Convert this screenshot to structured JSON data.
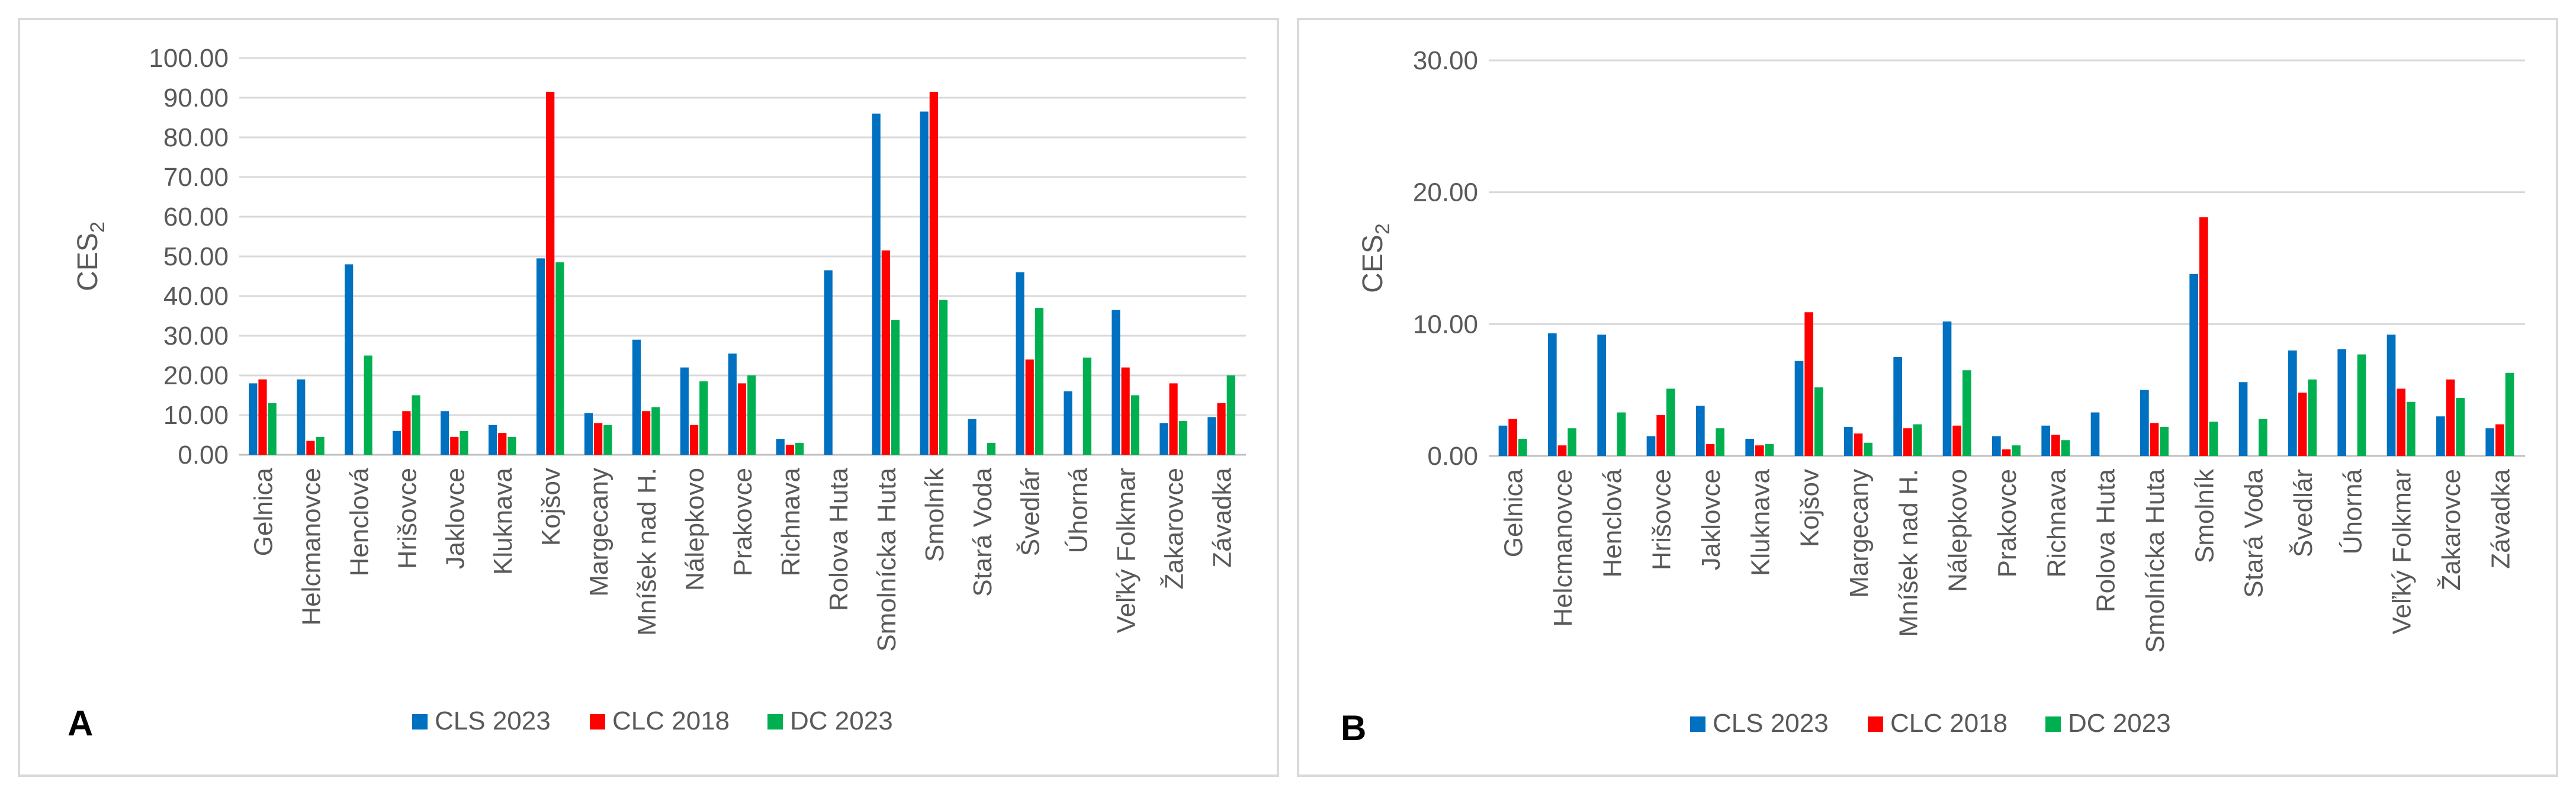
{
  "chart_data": [
    {
      "type": "bar",
      "panel_label": "A",
      "ylabel": "CES",
      "ylabel_sub": "2",
      "ylim": [
        0,
        100
      ],
      "ytick_step": 10,
      "ytick_labels": [
        "0.00",
        "10.00",
        "20.00",
        "30.00",
        "40.00",
        "50.00",
        "60.00",
        "70.00",
        "80.00",
        "90.00",
        "100.00"
      ],
      "categories": [
        "Gelnica",
        "Helcmanovce",
        "Henclová",
        "Hrišovce",
        "Jaklovce",
        "Kluknava",
        "Kojšov",
        "Margecany",
        "Mníšek nad H.",
        "Nálepkovo",
        "Prakovce",
        "Richnava",
        "Rolova Huta",
        "Smolnícka Huta",
        "Smolník",
        "Stará Voda",
        "Švedlár",
        "Úhorná",
        "Veľký Folkmar",
        "Žakarovce",
        "Závadka"
      ],
      "series": [
        {
          "name": "CLS 2023",
          "color": "#0070C0",
          "values": [
            18,
            19,
            48,
            6,
            11,
            7.5,
            49.5,
            10.5,
            29,
            22,
            25.5,
            4,
            46.5,
            86,
            86.5,
            9,
            46,
            16,
            36.5,
            8,
            9.5
          ]
        },
        {
          "name": "CLC 2018",
          "color": "#FF0000",
          "values": [
            19,
            3.5,
            0,
            11,
            4.5,
            5.5,
            91.5,
            8,
            11,
            7.5,
            18,
            2.5,
            0,
            51.5,
            91.5,
            0,
            24,
            0,
            22,
            18,
            13
          ]
        },
        {
          "name": "DC 2023",
          "color": "#00B050",
          "values": [
            13,
            4.5,
            25,
            15,
            6,
            4.5,
            48.5,
            7.5,
            12,
            18.5,
            20,
            3,
            0,
            34,
            39,
            3,
            37,
            24.5,
            15,
            8.5,
            20
          ]
        }
      ]
    },
    {
      "type": "bar",
      "panel_label": "B",
      "ylabel": "CES",
      "ylabel_sub": "2",
      "ylim": [
        0,
        30
      ],
      "ytick_step": 10,
      "ytick_labels": [
        "0.00",
        "10.00",
        "20.00",
        "30.00"
      ],
      "categories": [
        "Gelnica",
        "Helcmanovce",
        "Henclová",
        "Hrišovce",
        "Jaklovce",
        "Kluknava",
        "Kojšov",
        "Margecany",
        "Mníšek nad H.",
        "Nálepkovo",
        "Prakovce",
        "Richnava",
        "Rolova Huta",
        "Smolnícka Huta",
        "Smolník",
        "Stará Voda",
        "Švedlár",
        "Úhorná",
        "Veľký Folkmar",
        "Žakarovce",
        "Závadka"
      ],
      "series": [
        {
          "name": "CLS 2023",
          "color": "#0070C0",
          "values": [
            2.3,
            9.3,
            9.2,
            1.5,
            3.8,
            1.3,
            7.2,
            2.2,
            7.5,
            10.2,
            1.5,
            2.3,
            3.3,
            5.0,
            13.8,
            5.6,
            8.0,
            8.1,
            9.2,
            3.0,
            2.1
          ]
        },
        {
          "name": "CLC 2018",
          "color": "#FF0000",
          "values": [
            2.8,
            0.8,
            0,
            3.1,
            0.9,
            0.8,
            10.9,
            1.7,
            2.1,
            2.3,
            0.5,
            1.6,
            0,
            2.5,
            18.1,
            0,
            4.8,
            0,
            5.1,
            5.8,
            2.4
          ]
        },
        {
          "name": "DC 2023",
          "color": "#00B050",
          "values": [
            1.3,
            2.1,
            3.3,
            5.1,
            2.1,
            0.9,
            5.2,
            1.0,
            2.4,
            6.5,
            0.8,
            1.2,
            0,
            2.2,
            2.6,
            2.8,
            5.8,
            7.7,
            4.1,
            4.4,
            6.3
          ]
        }
      ]
    }
  ]
}
